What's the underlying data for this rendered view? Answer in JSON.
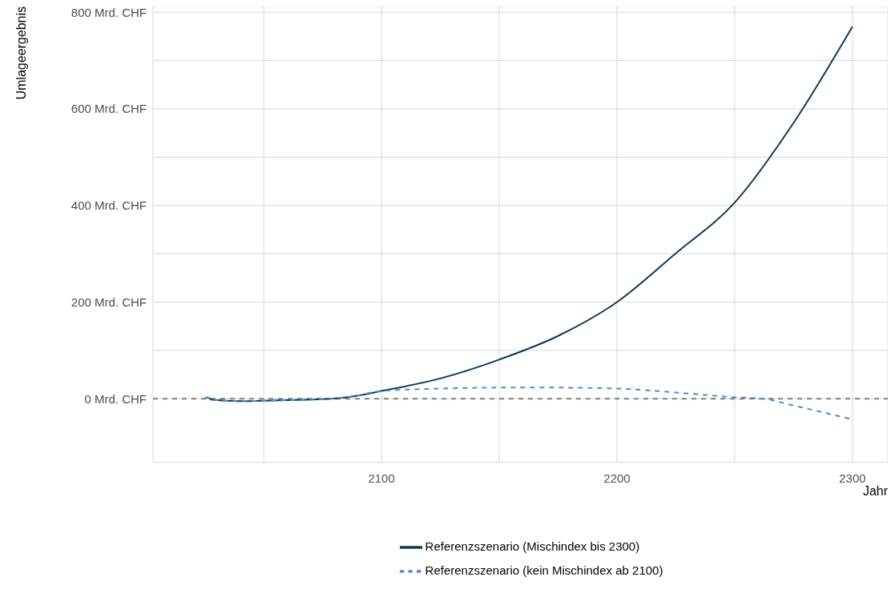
{
  "chart_data": {
    "type": "line",
    "xlabel": "Jahr",
    "ylabel": "Umlageergebnis",
    "xlim": [
      2003,
      2315
    ],
    "ylim": [
      -132,
      812
    ],
    "xticks": [
      {
        "value": 2050,
        "label": null
      },
      2100,
      {
        "value": 2150,
        "label": null
      },
      2200,
      {
        "value": 2250,
        "label": null
      },
      2300
    ],
    "yticks": [
      {
        "value": 0,
        "label": "0 Mrd. CHF"
      },
      {
        "value": 100,
        "label": null
      },
      {
        "value": 200,
        "label": "200 Mrd. CHF"
      },
      {
        "value": 300,
        "label": null
      },
      {
        "value": 400,
        "label": "400 Mrd. CHF"
      },
      {
        "value": 500,
        "label": null
      },
      {
        "value": 600,
        "label": "600 Mrd. CHF"
      },
      {
        "value": 700,
        "label": null
      },
      {
        "value": 800,
        "label": "800 Mrd. CHF"
      }
    ],
    "grid": true,
    "legend": "bottom",
    "marker": "none",
    "ref_lines": [
      {
        "axis": "y",
        "value": 0,
        "color": "#808080",
        "line_style": "dashed"
      }
    ],
    "series": [
      {
        "name": "Referenzszenario (Mischindex bis 2300)",
        "color": "#0b3a5c",
        "line_style": "solid",
        "x": [
          2025,
          2026,
          2028,
          2040,
          2050,
          2060,
          2075,
          2088,
          2100,
          2125,
          2150,
          2175,
          2200,
          2225,
          2250,
          2275,
          2300
        ],
        "values": [
          0,
          3,
          -2,
          -5,
          -4,
          -3,
          -1,
          5,
          16,
          42,
          81,
          130,
          200,
          301,
          406,
          571,
          770
        ]
      },
      {
        "name": "Referenzszenario (kein Mischindex ab 2100)",
        "color": "#4a90cc",
        "line_style": "dashed",
        "x": [
          2025,
          2026,
          2028,
          2040,
          2050,
          2060,
          2075,
          2088,
          2100,
          2125,
          2150,
          2175,
          2200,
          2225,
          2250,
          2262,
          2275,
          2300
        ],
        "values": [
          0,
          3,
          -2,
          -5,
          -4,
          -3,
          -1,
          5,
          16,
          21,
          23,
          23,
          21,
          13,
          3,
          0,
          -14,
          -43
        ]
      }
    ]
  }
}
